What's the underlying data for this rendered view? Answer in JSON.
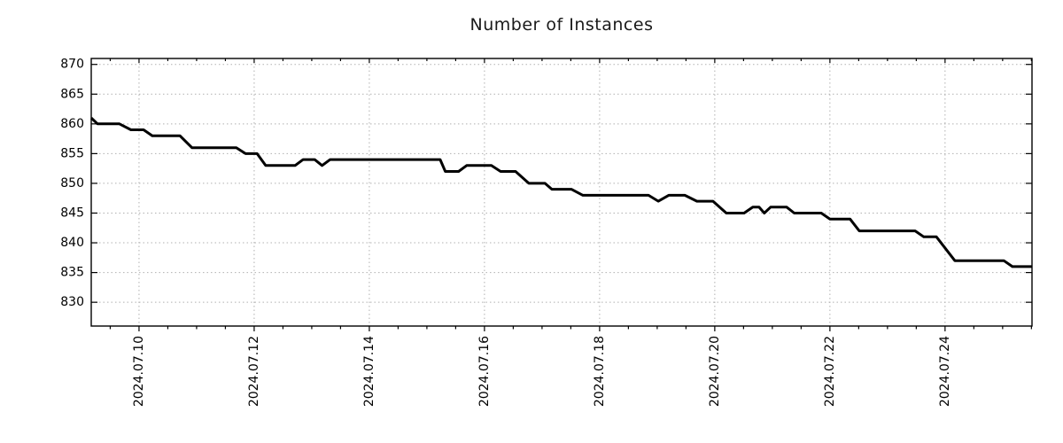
{
  "page": {
    "background": "#ffffff"
  },
  "chart_data": {
    "type": "line",
    "title": "Number of Instances",
    "xlabel": "",
    "ylabel": "",
    "legend": {
      "show": false
    },
    "grid": {
      "show": true,
      "style": "dotted",
      "color": "#b0b0b0"
    },
    "x_axis": {
      "unit": "days",
      "note": "t is days where t=1.0 corresponds to 2024.07.10 00:00",
      "xlim": [
        0.17,
        16.51
      ],
      "tick_label_rotation_deg": 90,
      "major_ticks": [
        {
          "t": 1,
          "label": "2024.07.10"
        },
        {
          "t": 3,
          "label": "2024.07.12"
        },
        {
          "t": 5,
          "label": "2024.07.14"
        },
        {
          "t": 7,
          "label": "2024.07.16"
        },
        {
          "t": 9,
          "label": "2024.07.18"
        },
        {
          "t": 11,
          "label": "2024.07.20"
        },
        {
          "t": 13,
          "label": "2024.07.22"
        },
        {
          "t": 15,
          "label": "2024.07.24"
        }
      ],
      "minor_tick_step": 0.5
    },
    "y_axis": {
      "ylim": [
        826,
        871
      ],
      "ticks": [
        830,
        835,
        840,
        845,
        850,
        855,
        860,
        865,
        870
      ]
    },
    "series": [
      {
        "name": "instances",
        "color": "#000000",
        "line_width": 3,
        "points": [
          [
            0.17,
            861
          ],
          [
            0.28,
            860
          ],
          [
            0.66,
            860
          ],
          [
            0.86,
            859
          ],
          [
            1.08,
            859
          ],
          [
            1.23,
            858
          ],
          [
            1.71,
            858
          ],
          [
            1.92,
            856
          ],
          [
            2.69,
            856
          ],
          [
            2.85,
            855
          ],
          [
            3.05,
            855
          ],
          [
            3.2,
            853
          ],
          [
            3.71,
            853
          ],
          [
            3.85,
            854
          ],
          [
            4.05,
            854
          ],
          [
            4.18,
            853
          ],
          [
            4.32,
            854
          ],
          [
            6.23,
            854
          ],
          [
            6.32,
            852
          ],
          [
            6.55,
            852
          ],
          [
            6.69,
            853
          ],
          [
            7.12,
            853
          ],
          [
            7.28,
            852
          ],
          [
            7.54,
            852
          ],
          [
            7.77,
            850
          ],
          [
            8.05,
            850
          ],
          [
            8.17,
            849
          ],
          [
            8.51,
            849
          ],
          [
            8.71,
            848
          ],
          [
            9.85,
            848
          ],
          [
            10.02,
            847
          ],
          [
            10.2,
            848
          ],
          [
            10.48,
            848
          ],
          [
            10.69,
            847
          ],
          [
            10.97,
            847
          ],
          [
            11.2,
            845
          ],
          [
            11.51,
            845
          ],
          [
            11.66,
            846
          ],
          [
            11.77,
            846
          ],
          [
            11.86,
            845
          ],
          [
            11.97,
            846
          ],
          [
            12.25,
            846
          ],
          [
            12.38,
            845
          ],
          [
            12.85,
            845
          ],
          [
            13.0,
            844
          ],
          [
            13.35,
            844
          ],
          [
            13.51,
            842
          ],
          [
            14.48,
            842
          ],
          [
            14.63,
            841
          ],
          [
            14.85,
            841
          ],
          [
            15.17,
            837
          ],
          [
            16.02,
            837
          ],
          [
            16.17,
            836
          ],
          [
            16.51,
            836
          ]
        ]
      }
    ],
    "axis_color": "#000000",
    "tick_label_color": "#000000",
    "tick_label_font_size": 14
  }
}
